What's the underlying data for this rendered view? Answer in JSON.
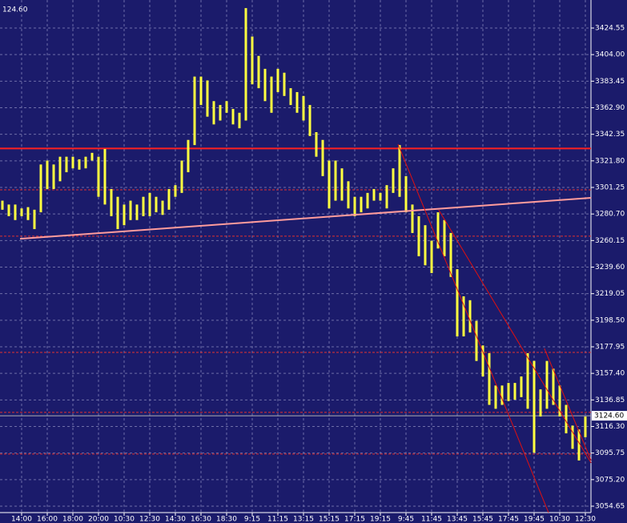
{
  "chart_data": {
    "type": "ohlc",
    "corner_label": "124.60",
    "background": "#1b1b6b",
    "bar_color": "#ffff40",
    "grid": true,
    "categories": [
      null,
      null,
      null,
      "14:00",
      null,
      null,
      null,
      "16:00",
      null,
      null,
      null,
      "18:00",
      null,
      null,
      null,
      "20:00",
      null,
      null,
      null,
      "10:30",
      null,
      null,
      null,
      "12:30",
      null,
      null,
      null,
      "14:30",
      null,
      null,
      null,
      "16:30",
      null,
      null,
      null,
      "18:30",
      null,
      null,
      null,
      "9:15",
      null,
      null,
      null,
      "11:15",
      null,
      null,
      null,
      "13:15",
      null,
      null,
      null,
      "15:15",
      null,
      null,
      null,
      "17:15",
      null,
      null,
      null,
      "19:15",
      null,
      null,
      null,
      "9:45",
      null,
      null,
      null,
      "11:45",
      null,
      null,
      null,
      "13:45",
      null,
      null,
      null,
      "15:45",
      null,
      null,
      null,
      "17:45",
      null,
      null,
      null,
      "19:45",
      null,
      null,
      null,
      "10:30",
      null,
      null,
      null,
      "12:30"
    ],
    "high": [
      3291,
      3288,
      3288,
      3285,
      3286,
      3284,
      3319,
      3322,
      3319,
      3325,
      3325,
      3325,
      3323,
      3325,
      3328,
      3325,
      3331,
      3300,
      3294,
      3288,
      3291,
      3288,
      3294,
      3297,
      3294,
      3291,
      3300,
      3303,
      3322,
      3338,
      3387,
      3387,
      3384,
      3368,
      3365,
      3368,
      3362,
      3359,
      3440,
      3418,
      3403,
      3393,
      3387,
      3393,
      3390,
      3378,
      3375,
      3372,
      3365,
      3344,
      3338,
      3322,
      3322,
      3316,
      3306,
      3294,
      3294,
      3297,
      3300,
      3297,
      3303,
      3316,
      3334,
      3310,
      3288,
      3279,
      3272,
      3260,
      3282,
      3276,
      3266,
      3238,
      3217,
      3214,
      3198,
      3179,
      3173,
      3148,
      3148,
      3150,
      3150,
      3155,
      3173,
      3167,
      3145,
      3167,
      3161,
      3148,
      3133,
      3117,
      3114,
      3124
    ],
    "low": [
      3284,
      3279,
      3276,
      3279,
      3276,
      3269,
      3282,
      3300,
      3300,
      3306,
      3313,
      3316,
      3315,
      3316,
      3322,
      3294,
      3288,
      3279,
      3269,
      3272,
      3276,
      3276,
      3279,
      3279,
      3282,
      3280,
      3284,
      3294,
      3297,
      3313,
      3334,
      3365,
      3356,
      3350,
      3353,
      3359,
      3350,
      3347,
      3353,
      3381,
      3378,
      3368,
      3359,
      3375,
      3372,
      3365,
      3359,
      3353,
      3341,
      3325,
      3310,
      3285,
      3291,
      3291,
      3285,
      3279,
      3282,
      3285,
      3291,
      3291,
      3285,
      3297,
      3294,
      3282,
      3266,
      3248,
      3241,
      3235,
      3254,
      3248,
      3232,
      3186,
      3186,
      3189,
      3167,
      3155,
      3133,
      3130,
      3133,
      3136,
      3137,
      3139,
      3130,
      3096,
      3124,
      3130,
      3133,
      3124,
      3111,
      3099,
      3090,
      3108
    ],
    "ylim": [
      3049.69,
      3446.24
    ],
    "yticks": [
      3054.65,
      {
        "value": 3075.2,
        "label": "3075.20"
      },
      3095.75,
      {
        "value": 3116.3,
        "label": "3116.30"
      },
      3136.85,
      {
        "value": 3157.4,
        "label": "3157.40"
      },
      3177.95,
      {
        "value": 3198.5,
        "label": "3198.50"
      },
      3219.05,
      {
        "value": 3239.6,
        "label": "3239.60"
      },
      3260.15,
      {
        "value": 3280.7,
        "label": "3280.70"
      },
      3301.25,
      {
        "value": 3321.8,
        "label": "3321.80"
      },
      3342.35,
      {
        "value": 3362.9,
        "label": "3362.90"
      },
      3383.45,
      {
        "value": 3404.0,
        "label": "3404.00"
      },
      3424.55
    ],
    "current_price": {
      "value": 3124.6,
      "label": "3124.60"
    },
    "levels": [
      {
        "value": 3331.4,
        "style": "solid",
        "color": "#ff2020"
      },
      {
        "value": 3299.4,
        "style": "dashed",
        "color": "#e03030"
      },
      {
        "value": 3263.5,
        "style": "dashed",
        "color": "#e03030"
      },
      {
        "value": 3173.6,
        "style": "dashed",
        "color": "#e03030"
      },
      {
        "value": 3127.2,
        "style": "dashed",
        "color": "#e03030"
      },
      {
        "value": 3095.0,
        "style": "dashed",
        "color": "#e03030"
      }
    ],
    "trendlines": [
      {
        "x": [
          2.75,
          91.9
        ],
        "y": [
          3261.5,
          3293.2
        ],
        "color": "#ff9c9c"
      },
      {
        "x": [
          61.75,
          85.25
        ],
        "y": [
          3334.7,
          3049.7
        ],
        "color": "#e01010"
      },
      {
        "x": [
          68.1,
          91.9
        ],
        "y": [
          3283.9,
          3088.1
        ],
        "color": "#e01010"
      },
      {
        "x": [
          84.6,
          91.9
        ],
        "y": [
          3176.7,
          3090.0
        ],
        "color": "#e01010"
      }
    ]
  }
}
